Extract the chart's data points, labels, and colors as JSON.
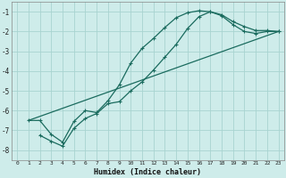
{
  "xlabel": "Humidex (Indice chaleur)",
  "ylabel": "",
  "bg_color": "#ceecea",
  "grid_color": "#a8d4d0",
  "line_color": "#1a6b5e",
  "xlim": [
    -0.5,
    23.5
  ],
  "ylim": [
    -8.5,
    -0.5
  ],
  "yticks": [
    -8,
    -7,
    -6,
    -5,
    -4,
    -3,
    -2,
    -1
  ],
  "xticks": [
    0,
    1,
    2,
    3,
    4,
    5,
    6,
    7,
    8,
    9,
    10,
    11,
    12,
    13,
    14,
    15,
    16,
    17,
    18,
    19,
    20,
    21,
    22,
    23
  ],
  "line1_x": [
    1,
    2,
    3,
    4,
    5,
    6,
    7,
    8,
    9,
    10,
    11,
    12,
    13,
    14,
    15,
    16,
    17,
    18,
    19,
    20,
    21,
    22,
    23
  ],
  "line1_y": [
    -6.5,
    -6.5,
    -7.2,
    -7.6,
    -6.55,
    -6.0,
    -6.1,
    -5.5,
    -4.7,
    -3.6,
    -2.85,
    -2.35,
    -1.8,
    -1.3,
    -1.05,
    -0.95,
    -1.0,
    -1.2,
    -1.65,
    -2.0,
    -2.1,
    -2.0,
    -2.0
  ],
  "line2_x": [
    2,
    3,
    4,
    5,
    6,
    7,
    8,
    9,
    10,
    11,
    12,
    13,
    14,
    15,
    16,
    17,
    18,
    19,
    20,
    21,
    22,
    23
  ],
  "line2_y": [
    -7.25,
    -7.55,
    -7.8,
    -6.9,
    -6.4,
    -6.15,
    -5.65,
    -5.55,
    -5.0,
    -4.55,
    -3.95,
    -3.3,
    -2.65,
    -1.85,
    -1.25,
    -1.0,
    -1.15,
    -1.5,
    -1.75,
    -1.95,
    -1.95,
    -2.0
  ],
  "line3_x": [
    1,
    23
  ],
  "line3_y": [
    -6.5,
    -2.0
  ]
}
